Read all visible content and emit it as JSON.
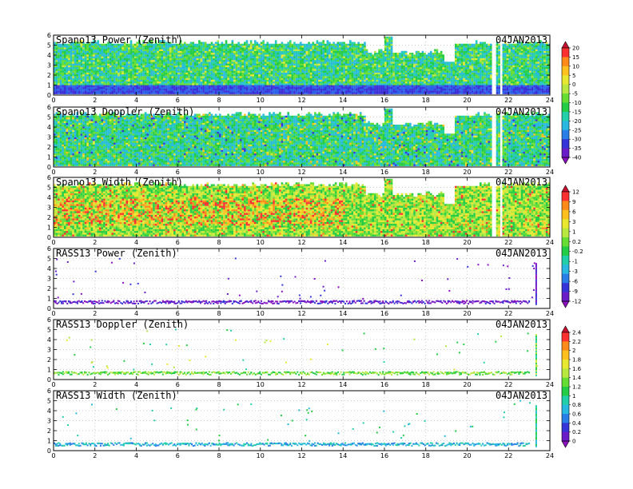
{
  "chart_data": [
    {
      "type": "heatmap",
      "title": "Spano13 Power (Zenith)",
      "date": "04JAN2013",
      "x_ticks": [
        "0",
        "2",
        "4",
        "6",
        "8",
        "10",
        "12",
        "14",
        "16",
        "18",
        "20",
        "22",
        "24"
      ],
      "y_ticks": [
        "0",
        "1",
        "2",
        "3",
        "4",
        "5",
        "6"
      ],
      "xlim": [
        0,
        24
      ],
      "ylim": [
        0,
        6
      ],
      "grid": true,
      "pattern": "dense",
      "palette": "power"
    },
    {
      "type": "heatmap",
      "title": "Spano13 Doppler (Zenith)",
      "date": "04JAN2013",
      "x_ticks": [
        "0",
        "2",
        "4",
        "6",
        "8",
        "10",
        "12",
        "14",
        "16",
        "18",
        "20",
        "22",
        "24"
      ],
      "y_ticks": [
        "0",
        "1",
        "2",
        "3",
        "4",
        "5",
        "6"
      ],
      "xlim": [
        0,
        24
      ],
      "ylim": [
        0,
        6
      ],
      "grid": true,
      "pattern": "dense",
      "palette": "doppler"
    },
    {
      "type": "heatmap",
      "title": "Spano13 Width (Zenith)",
      "date": "04JAN2013",
      "x_ticks": [
        "0",
        "2",
        "4",
        "6",
        "8",
        "10",
        "12",
        "14",
        "16",
        "18",
        "20",
        "22",
        "24"
      ],
      "y_ticks": [
        "0",
        "1",
        "2",
        "3",
        "4",
        "5",
        "6"
      ],
      "xlim": [
        0,
        24
      ],
      "ylim": [
        0,
        6
      ],
      "grid": true,
      "pattern": "dense",
      "palette": "width"
    },
    {
      "type": "heatmap",
      "title": "RASS13 Power (Zenith)",
      "date": "04JAN2013",
      "x_ticks": [
        "0",
        "2",
        "4",
        "6",
        "8",
        "10",
        "12",
        "14",
        "16",
        "18",
        "20",
        "22",
        "24"
      ],
      "y_ticks": [
        "0",
        "1",
        "2",
        "3",
        "4",
        "5",
        "6"
      ],
      "xlim": [
        0,
        24
      ],
      "ylim": [
        0,
        6
      ],
      "grid": true,
      "pattern": "sparse",
      "palette": "rpower"
    },
    {
      "type": "heatmap",
      "title": "RASS13 Doppler (Zenith)",
      "date": "04JAN2013",
      "x_ticks": [
        "0",
        "2",
        "4",
        "6",
        "8",
        "10",
        "12",
        "14",
        "16",
        "18",
        "20",
        "22",
        "24"
      ],
      "y_ticks": [
        "0",
        "1",
        "2",
        "3",
        "4",
        "5",
        "6"
      ],
      "xlim": [
        0,
        24
      ],
      "ylim": [
        0,
        6
      ],
      "grid": true,
      "pattern": "sparse",
      "palette": "rdoppler"
    },
    {
      "type": "heatmap",
      "title": "RASS13 Width (Zenith)",
      "date": "04JAN2013",
      "x_ticks": [
        "0",
        "2",
        "4",
        "6",
        "8",
        "10",
        "12",
        "14",
        "16",
        "18",
        "20",
        "22",
        "24"
      ],
      "y_ticks": [
        "0",
        "1",
        "2",
        "3",
        "4",
        "5",
        "6"
      ],
      "xlim": [
        0,
        24
      ],
      "ylim": [
        0,
        6
      ],
      "grid": true,
      "pattern": "sparse",
      "palette": "rwidth"
    }
  ],
  "colorbars": [
    {
      "labels": [
        "20",
        "15",
        "10",
        "5",
        "0",
        "-5",
        "-10",
        "-15",
        "-20",
        "-25",
        "-30",
        "-35",
        "-40"
      ],
      "colors": [
        "#c8102e",
        "#ff3030",
        "#ff8a1a",
        "#ffc020",
        "#e8e830",
        "#b8e840",
        "#66dd33",
        "#22cc44",
        "#22cfa8",
        "#28b8e0",
        "#2a7ee8",
        "#3434d8",
        "#6a1cc8",
        "#8a10c0"
      ]
    },
    {
      "labels": [
        "12",
        "9",
        "6",
        "3",
        "1",
        "0.2",
        "-0.2",
        "-1",
        "-3",
        "-6",
        "-9",
        "-12"
      ],
      "colors": [
        "#c8102e",
        "#ff3030",
        "#ff8a1a",
        "#ffc020",
        "#e8e830",
        "#b8e840",
        "#66dd33",
        "#22cc44",
        "#22cfa8",
        "#28b8e0",
        "#2a7ee8",
        "#3434d8",
        "#6a1cc8",
        "#8a10c0"
      ]
    },
    {
      "labels": [
        "2.4",
        "2.2",
        "2",
        "1.8",
        "1.6",
        "1.4",
        "1.2",
        "1",
        "0.8",
        "0.6",
        "0.4",
        "0.2",
        "0"
      ],
      "colors": [
        "#c8102e",
        "#ff3030",
        "#ff8a1a",
        "#ffc020",
        "#e8e830",
        "#b8e840",
        "#66dd33",
        "#22cc44",
        "#22cfa8",
        "#28b8e0",
        "#2a7ee8",
        "#3434d8",
        "#6a1cc8",
        "#8a10c0"
      ]
    }
  ]
}
